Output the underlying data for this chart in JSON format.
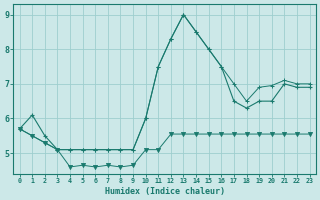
{
  "xlabel": "Humidex (Indice chaleur)",
  "x": [
    0,
    1,
    2,
    3,
    4,
    5,
    6,
    7,
    8,
    9,
    10,
    11,
    12,
    13,
    14,
    15,
    16,
    17,
    18,
    19,
    20,
    21,
    22,
    23
  ],
  "y_main": [
    5.7,
    6.1,
    5.5,
    5.1,
    5.1,
    5.1,
    5.1,
    5.1,
    5.1,
    5.1,
    6.0,
    7.5,
    8.3,
    9.0,
    8.5,
    8.0,
    7.5,
    6.5,
    6.3,
    6.5,
    6.5,
    7.0,
    6.9,
    6.9
  ],
  "y_lower": [
    5.7,
    5.5,
    5.3,
    5.1,
    4.6,
    4.65,
    4.6,
    4.65,
    4.6,
    4.65,
    5.1,
    5.1,
    5.55,
    5.55,
    5.55,
    5.55,
    5.55,
    5.55,
    5.55,
    5.55,
    5.55,
    5.55,
    5.55,
    5.55
  ],
  "y_upper": [
    5.7,
    5.5,
    5.3,
    5.1,
    5.1,
    5.1,
    5.1,
    5.1,
    5.1,
    5.1,
    6.0,
    7.5,
    8.3,
    9.0,
    8.5,
    8.0,
    7.5,
    7.0,
    6.5,
    6.9,
    6.95,
    7.1,
    7.0,
    7.0
  ],
  "line_color": "#1a7a6e",
  "bg_color": "#cce8e8",
  "grid_color": "#9ecece",
  "ylim": [
    4.4,
    9.3
  ],
  "xlim": [
    -0.5,
    23.5
  ],
  "yticks": [
    5,
    6,
    7,
    8,
    9
  ]
}
